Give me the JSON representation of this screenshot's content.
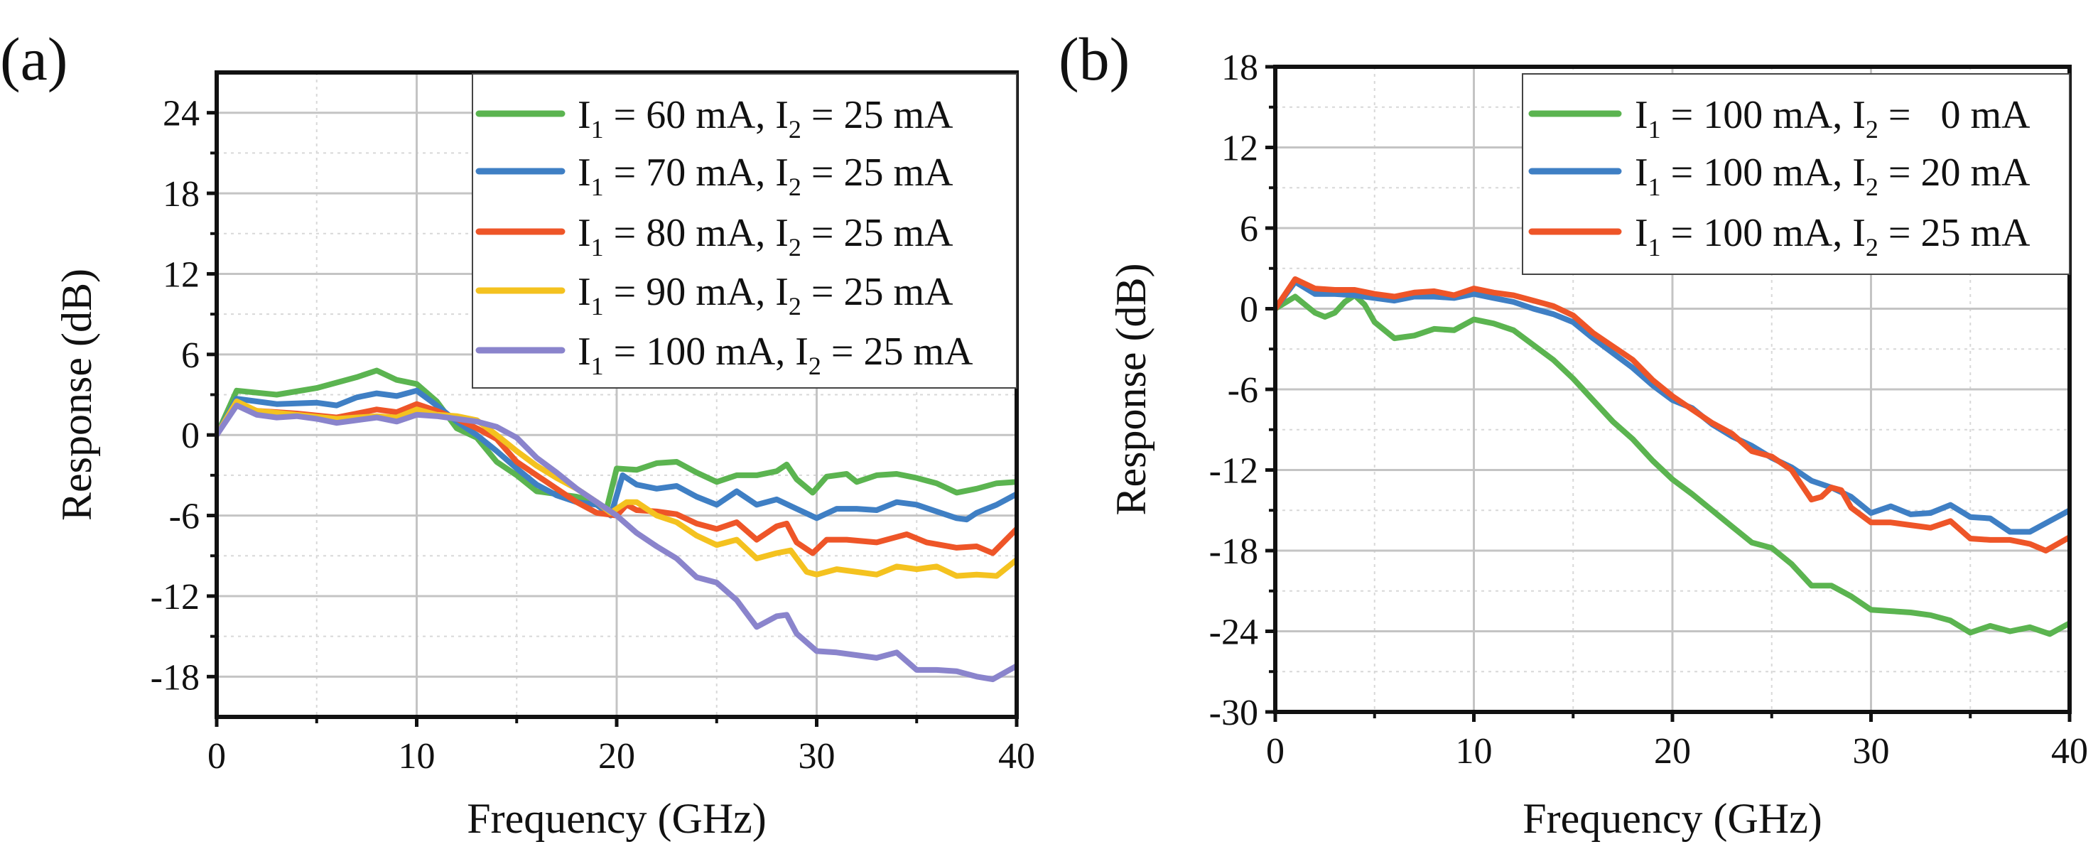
{
  "chart_data": [
    {
      "type": "line",
      "panel_label": "(a)",
      "xlabel": "Frequency (GHz)",
      "ylabel": "Response (dB)",
      "xlim": [
        0,
        40
      ],
      "ylim": [
        -21,
        27
      ],
      "xticks": [
        0,
        10,
        20,
        30,
        40
      ],
      "yticks": [
        -18,
        -12,
        -6,
        0,
        6,
        12,
        18,
        24
      ],
      "grid": true,
      "legend_position": "top-right",
      "series": [
        {
          "name_parts": [
            "I",
            "1",
            " = 60 mA, I",
            "2",
            " = 25 mA"
          ],
          "color": "#5bb450",
          "x": [
            0,
            1,
            3,
            5,
            6,
            7,
            8,
            9,
            10,
            11,
            12,
            13,
            14,
            15,
            16,
            18,
            19,
            19.5,
            20,
            21,
            22,
            23,
            24,
            25,
            26,
            27,
            28,
            28.5,
            29,
            29.8,
            30.5,
            31.5,
            32,
            33,
            34,
            35,
            36,
            37,
            38,
            39,
            40
          ],
          "y": [
            0,
            3.3,
            3,
            3.5,
            3.9,
            4.3,
            4.8,
            4.1,
            3.8,
            2.5,
            0.5,
            -0.2,
            -2,
            -3,
            -4.2,
            -4.6,
            -5,
            -5.5,
            -2.5,
            -2.6,
            -2.1,
            -2,
            -2.8,
            -3.5,
            -3,
            -3,
            -2.7,
            -2.2,
            -3.3,
            -4.3,
            -3.1,
            -2.9,
            -3.5,
            -3,
            -2.9,
            -3.2,
            -3.6,
            -4.3,
            -4,
            -3.6,
            -3.5
          ]
        },
        {
          "name_parts": [
            "I",
            "1",
            " = 70 mA, I",
            "2",
            " = 25 mA"
          ],
          "color": "#3f7fc4",
          "x": [
            0,
            1,
            3,
            5,
            6,
            7,
            8,
            9,
            10,
            11,
            12,
            13,
            14,
            15,
            16,
            17,
            18,
            19,
            19.7,
            20.3,
            21,
            22,
            23,
            24,
            25,
            26,
            27,
            28,
            29,
            30,
            31,
            32,
            33,
            34,
            35,
            36,
            37,
            37.5,
            38,
            39,
            40
          ],
          "y": [
            0,
            2.7,
            2.3,
            2.4,
            2.2,
            2.8,
            3.1,
            2.9,
            3.3,
            2.2,
            1,
            0,
            -1.2,
            -2.5,
            -3.7,
            -4.5,
            -5,
            -5.2,
            -6,
            -3,
            -3.7,
            -4,
            -3.8,
            -4.6,
            -5.2,
            -4.2,
            -5.2,
            -4.8,
            -5.5,
            -6.2,
            -5.5,
            -5.5,
            -5.6,
            -5,
            -5.2,
            -5.7,
            -6.2,
            -6.3,
            -5.8,
            -5.2,
            -4.4
          ]
        },
        {
          "name_parts": [
            "I",
            "1",
            " = 80 mA, I",
            "2",
            " = 25 mA"
          ],
          "color": "#ee5528",
          "x": [
            0,
            1,
            2,
            4,
            6,
            7,
            8,
            9,
            10,
            11,
            12,
            13,
            14,
            15,
            16,
            17,
            18,
            19,
            20,
            20.5,
            21,
            22,
            23,
            24,
            25,
            26,
            27,
            28,
            28.5,
            29,
            29.8,
            30.5,
            31.5,
            33,
            34.5,
            35.5,
            37,
            38,
            38.8,
            40
          ],
          "y": [
            0,
            2.3,
            1.8,
            1.6,
            1.3,
            1.6,
            1.9,
            1.7,
            2.3,
            1.8,
            1.2,
            0.5,
            -0.3,
            -2,
            -3,
            -4,
            -5,
            -5.8,
            -6,
            -5.2,
            -5.6,
            -5.7,
            -5.9,
            -6.6,
            -7,
            -6.5,
            -7.8,
            -6.8,
            -6.6,
            -8,
            -8.8,
            -7.8,
            -7.8,
            -8,
            -7.4,
            -8,
            -8.4,
            -8.3,
            -8.8,
            -7
          ]
        },
        {
          "name_parts": [
            "I",
            "1",
            " = 90 mA, I",
            "2",
            " = 25 mA"
          ],
          "color": "#f4c21f",
          "x": [
            0,
            1,
            2,
            4,
            6,
            8,
            9,
            10,
            11,
            12,
            13,
            14,
            15,
            16,
            17,
            18,
            19,
            19.7,
            20.5,
            21,
            22,
            23,
            24,
            25,
            26,
            27,
            28,
            28.7,
            29.5,
            30,
            31,
            32,
            33,
            34,
            35,
            36,
            37,
            38,
            39,
            40
          ],
          "y": [
            0,
            2.5,
            1.8,
            1.5,
            1.2,
            1.4,
            1.3,
            1.9,
            1.5,
            1.4,
            1.1,
            0,
            -1.2,
            -2.3,
            -3.2,
            -4,
            -5,
            -5.8,
            -5,
            -5,
            -6,
            -6.5,
            -7.5,
            -8.2,
            -7.8,
            -9.2,
            -8.8,
            -8.6,
            -10.2,
            -10.4,
            -10,
            -10.2,
            -10.4,
            -9.8,
            -10,
            -9.8,
            -10.5,
            -10.4,
            -10.5,
            -9.3
          ]
        },
        {
          "name_parts": [
            "I",
            "1",
            " = 100 mA, I",
            "2",
            " = 25 mA"
          ],
          "color": "#8a84cc",
          "x": [
            0,
            1,
            2,
            3,
            4,
            5,
            6,
            7,
            8,
            9,
            10,
            11,
            12,
            13,
            14,
            15,
            16,
            17,
            18,
            19,
            20,
            21,
            22,
            23,
            24,
            25,
            26,
            27,
            28,
            28.5,
            29,
            30,
            31,
            32,
            33,
            34,
            35,
            36,
            37,
            38,
            38.8,
            40
          ],
          "y": [
            0,
            2.2,
            1.5,
            1.3,
            1.4,
            1.2,
            0.9,
            1.1,
            1.3,
            1,
            1.5,
            1.4,
            1.2,
            1,
            0.6,
            -0.2,
            -1.7,
            -2.8,
            -4,
            -5,
            -6,
            -7.3,
            -8.3,
            -9.2,
            -10.6,
            -11,
            -12.3,
            -14.3,
            -13.5,
            -13.4,
            -14.8,
            -16.1,
            -16.2,
            -16.4,
            -16.6,
            -16.2,
            -17.5,
            -17.5,
            -17.6,
            -18,
            -18.2,
            -17.2
          ]
        }
      ]
    },
    {
      "type": "line",
      "panel_label": "(b)",
      "xlabel": "Frequency (GHz)",
      "ylabel": "Response (dB)",
      "xlim": [
        0,
        40
      ],
      "ylim": [
        -30,
        18
      ],
      "xticks": [
        0,
        10,
        20,
        30,
        40
      ],
      "yticks": [
        -30,
        -24,
        -18,
        -12,
        -6,
        0,
        6,
        12,
        18
      ],
      "grid": true,
      "legend_position": "top-right",
      "series": [
        {
          "name_parts": [
            "I",
            "1",
            " = 100 mA, I",
            "2",
            " =   0 mA"
          ],
          "color": "#5bb450",
          "x": [
            0,
            1,
            2,
            2.5,
            3,
            3.5,
            4,
            4.5,
            5,
            6,
            7,
            8,
            9,
            10,
            11,
            12,
            13,
            14,
            15,
            16,
            17,
            18,
            19,
            20,
            21,
            22,
            23,
            24,
            25,
            26,
            27,
            28,
            29,
            30,
            31,
            32,
            33,
            34,
            35,
            36,
            37,
            38,
            39,
            40
          ],
          "y": [
            0,
            0.9,
            -0.3,
            -0.6,
            -0.3,
            0.5,
            1,
            0.3,
            -1,
            -2.2,
            -2,
            -1.5,
            -1.6,
            -0.8,
            -1.1,
            -1.6,
            -2.7,
            -3.8,
            -5.2,
            -6.8,
            -8.4,
            -9.7,
            -11.3,
            -12.7,
            -13.8,
            -15,
            -16.2,
            -17.4,
            -17.8,
            -19,
            -20.6,
            -20.6,
            -21.4,
            -22.4,
            -22.5,
            -22.6,
            -22.8,
            -23.2,
            -24.1,
            -23.6,
            -24,
            -23.7,
            -24.2,
            -23.4
          ]
        },
        {
          "name_parts": [
            "I",
            "1",
            " = 100 mA, I",
            "2",
            " = 20 mA"
          ],
          "color": "#3f7fc4",
          "x": [
            0,
            1,
            2,
            3,
            4,
            5,
            6,
            7,
            8,
            9,
            10,
            11,
            12,
            13,
            14,
            15,
            16,
            17,
            18,
            19,
            20,
            21,
            22,
            23,
            24,
            25,
            26,
            27,
            28,
            29,
            30,
            31,
            32,
            33,
            34,
            35,
            36,
            37,
            38,
            39,
            40
          ],
          "y": [
            0,
            2,
            1.1,
            1.1,
            1,
            0.8,
            0.6,
            0.9,
            0.9,
            0.8,
            1.1,
            0.8,
            0.5,
            0,
            -0.4,
            -1,
            -2.2,
            -3.3,
            -4.4,
            -5.7,
            -6.8,
            -7.4,
            -8.6,
            -9.5,
            -10.2,
            -11.1,
            -11.8,
            -12.8,
            -13.3,
            -14,
            -15.2,
            -14.7,
            -15.3,
            -15.2,
            -14.6,
            -15.5,
            -15.6,
            -16.6,
            -16.6,
            -15.8,
            -15
          ]
        },
        {
          "name_parts": [
            "I",
            "1",
            " = 100 mA, I",
            "2",
            " = 25 mA"
          ],
          "color": "#ee5528",
          "x": [
            0,
            1,
            2,
            3,
            4,
            5,
            6,
            7,
            8,
            9,
            10,
            11,
            12,
            13,
            14,
            15,
            16,
            17,
            18,
            19,
            20,
            21,
            22,
            23,
            24,
            25,
            26,
            27,
            27.5,
            28,
            28.5,
            29,
            30,
            31,
            32,
            33,
            34,
            35,
            36,
            37,
            38,
            38.8,
            40
          ],
          "y": [
            0,
            2.2,
            1.5,
            1.4,
            1.4,
            1.1,
            0.9,
            1.2,
            1.3,
            1,
            1.5,
            1.2,
            1,
            0.6,
            0.2,
            -0.5,
            -1.8,
            -2.8,
            -3.8,
            -5.3,
            -6.5,
            -7.5,
            -8.5,
            -9.3,
            -10.6,
            -11,
            -12,
            -14.2,
            -14,
            -13.3,
            -13.5,
            -14.8,
            -15.9,
            -15.9,
            -16.1,
            -16.3,
            -15.8,
            -17.1,
            -17.2,
            -17.2,
            -17.5,
            -18,
            -17
          ]
        }
      ]
    }
  ]
}
